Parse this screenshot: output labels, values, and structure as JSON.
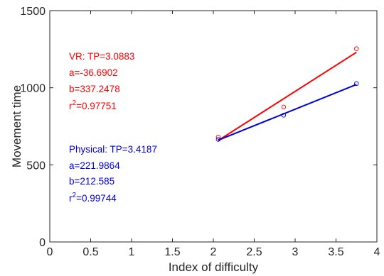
{
  "chart_data": {
    "type": "scatter",
    "title": "",
    "xlabel": "Index of difficulty",
    "ylabel": "Movement time",
    "xlim": [
      0,
      4
    ],
    "ylim": [
      0,
      1500
    ],
    "xticks": [
      0,
      0.5,
      1,
      1.5,
      2,
      2.5,
      3,
      3.5,
      4
    ],
    "yticks": [
      0,
      500,
      1000,
      1500
    ],
    "xtick_labels": [
      "0",
      "0.5",
      "1",
      "1.5",
      "2",
      "2.5",
      "3",
      "3.5",
      "4"
    ],
    "ytick_labels": [
      "0",
      "500",
      "1000",
      "1500"
    ],
    "grid": false,
    "series": [
      {
        "color": "#ff0000",
        "points": [
          {
            "x": 2.06,
            "y": 680
          },
          {
            "x": 2.86,
            "y": 875
          },
          {
            "x": 3.75,
            "y": 1253
          }
        ],
        "fit": {
          "x": [
            2.06,
            3.75
          ],
          "y": [
            658,
            1230
          ]
        },
        "annotation": {
          "tp": "VR: TP=3.0883",
          "a": "a=-36.6902",
          "b": "b=337.2478",
          "r2_prefix": "r",
          "r2_exp": "2",
          "r2_value": "=0.97751"
        }
      },
      {
        "color": "#0000dd",
        "points": [
          {
            "x": 2.06,
            "y": 665
          },
          {
            "x": 2.86,
            "y": 822
          },
          {
            "x": 3.75,
            "y": 1027
          }
        ],
        "fit": {
          "x": [
            2.06,
            3.75
          ],
          "y": [
            660,
            1021
          ]
        },
        "annotation": {
          "tp": "Physical: TP=3.4187",
          "a": "a=221.9864",
          "b": "b=212.585",
          "r2_prefix": "r",
          "r2_exp": "2",
          "r2_value": "=0.99744"
        }
      }
    ]
  }
}
